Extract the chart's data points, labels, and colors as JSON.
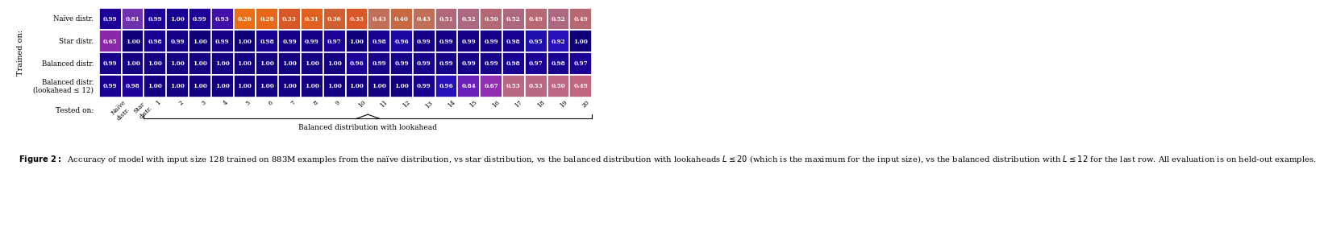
{
  "rows": [
    {
      "label": "Naïve distr.",
      "values": [
        0.99,
        0.81,
        0.99,
        1.0,
        0.99,
        0.93,
        0.26,
        0.28,
        0.33,
        0.31,
        0.36,
        0.33,
        0.43,
        0.4,
        0.43,
        0.51,
        0.52,
        0.5,
        0.52,
        0.49,
        0.52,
        0.49
      ]
    },
    {
      "label": "Star distr.",
      "values": [
        0.65,
        1.0,
        0.98,
        0.99,
        1.0,
        0.99,
        1.0,
        0.98,
        0.99,
        0.99,
        0.97,
        1.0,
        0.98,
        0.96,
        0.99,
        0.99,
        0.99,
        0.99,
        0.98,
        0.95,
        0.92,
        1.0
      ]
    },
    {
      "label": "Balanced distr.",
      "values": [
        0.99,
        1.0,
        1.0,
        1.0,
        1.0,
        1.0,
        1.0,
        1.0,
        1.0,
        1.0,
        1.0,
        0.96,
        0.99,
        0.99,
        0.99,
        0.99,
        0.99,
        0.99,
        0.98,
        0.97,
        0.98,
        0.97
      ]
    },
    {
      "label": "Balanced distr.\n(lookahead ≤ 12)",
      "values": [
        0.99,
        0.98,
        1.0,
        1.0,
        1.0,
        1.0,
        1.0,
        1.0,
        1.0,
        1.0,
        1.0,
        1.0,
        1.0,
        1.0,
        0.99,
        0.96,
        0.84,
        0.67,
        0.53,
        0.53,
        0.5,
        0.49
      ]
    }
  ],
  "col_bottom_labels": [
    "Naïve\ndistr.",
    "Star\ndistr.",
    "1",
    "2",
    "3",
    "4",
    "5",
    "6",
    "7",
    "8",
    "9",
    "10",
    "11",
    "12",
    "13",
    "14",
    "15",
    "16",
    "17",
    "18",
    "19",
    "20"
  ],
  "ytrain_label": "Trained on:",
  "xtest_label": "Tested on:",
  "brace_label": "Balanced distribution with lookahead",
  "caption_bold": "Figure 2:",
  "caption_rest": "  Accuracy of model with input size 128 trained on 883M examples from the naïve distribution, vs star distribution, vs the balanced distribution with lookaheads $L \\leq 20$ (which is the maximum for the input size), vs the balanced distribution with $L \\leq 12$ for the last row. All evaluation is on held-out examples.",
  "fig_width": 10.8,
  "fig_height": 3.68,
  "cmap_naive": [
    [
      0.25,
      "#f07010"
    ],
    [
      0.28,
      "#e86818"
    ],
    [
      0.31,
      "#e06020"
    ],
    [
      0.33,
      "#d85828"
    ],
    [
      0.36,
      "#d06030"
    ],
    [
      0.4,
      "#c86840"
    ],
    [
      0.43,
      "#c07058"
    ],
    [
      0.49,
      "#b86870"
    ],
    [
      0.51,
      "#b06878"
    ],
    [
      0.52,
      "#ac6880"
    ],
    [
      0.81,
      "#7030b0"
    ],
    [
      0.93,
      "#4010a8"
    ],
    [
      0.99,
      "#1e0098"
    ],
    [
      1.0,
      "#1a0090"
    ]
  ],
  "cmap_star": [
    [
      0.65,
      "#8828a8"
    ],
    [
      0.92,
      "#2810b8"
    ],
    [
      0.95,
      "#2010b0"
    ],
    [
      0.97,
      "#1c0098"
    ],
    [
      0.98,
      "#180090"
    ],
    [
      0.99,
      "#160088"
    ],
    [
      1.0,
      "#100078"
    ]
  ],
  "cmap_balanced": [
    [
      0.96,
      "#1e0098"
    ],
    [
      0.97,
      "#1c0095"
    ],
    [
      0.98,
      "#1a0090"
    ],
    [
      0.99,
      "#180088"
    ],
    [
      1.0,
      "#140080"
    ]
  ],
  "cmap_bal12": [
    [
      0.49,
      "#c06880"
    ],
    [
      0.5,
      "#bc6882"
    ],
    [
      0.53,
      "#b86885"
    ],
    [
      0.67,
      "#9030b0"
    ],
    [
      0.84,
      "#6820b8"
    ],
    [
      0.96,
      "#2810b8"
    ],
    [
      0.98,
      "#1e0098"
    ],
    [
      0.99,
      "#180090"
    ],
    [
      1.0,
      "#120080"
    ]
  ]
}
